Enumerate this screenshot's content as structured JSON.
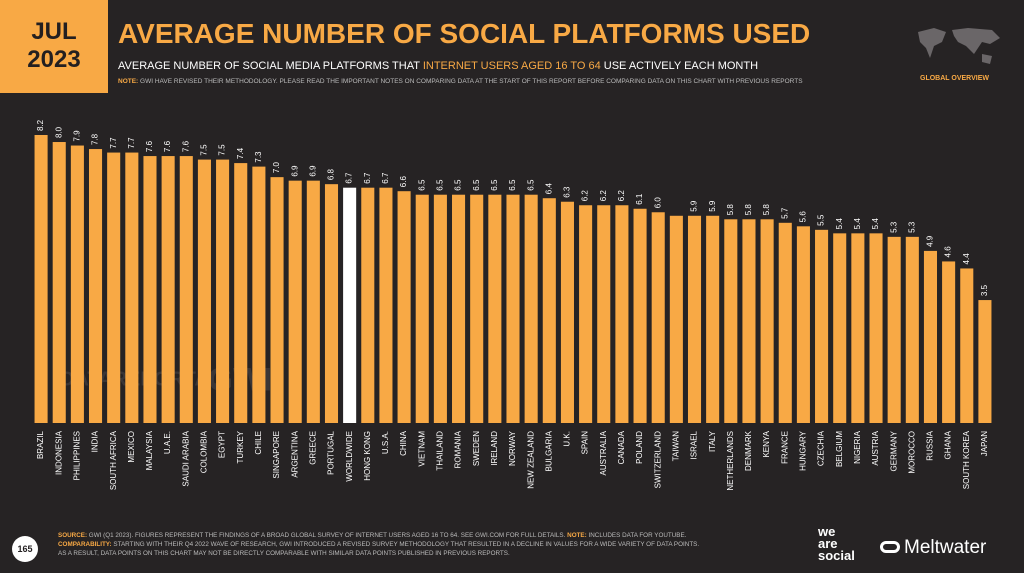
{
  "header": {
    "month": "JUL",
    "year": "2023",
    "title": "AVERAGE NUMBER OF SOCIAL PLATFORMS USED",
    "subtitle": [
      "AVERAGE NUMBER OF SOCIAL MEDIA PLATFORMS THAT",
      "INTERNET USERS AGED 16 TO 64",
      "USE ACTIVELY EACH MONTH"
    ],
    "note_label": "NOTE:",
    "note": "GWI HAVE REVISED THEIR METHODOLOGY. PLEASE READ THE IMPORTANT NOTES ON COMPARING DATA AT THE START OF THIS REPORT BEFORE COMPARING DATA ON THIS CHART WITH PREVIOUS REPORTS",
    "badge": "GLOBAL OVERVIEW"
  },
  "watermark": [
    "DATAREPORTAL",
    "GWI."
  ],
  "chart_data": {
    "type": "bar",
    "color": "#f8a945",
    "highlight": {
      "index": 17,
      "color": "#ffffff"
    },
    "categories": [
      "BRAZIL",
      "INDONESIA",
      "PHILIPPINES",
      "INDIA",
      "SOUTH AFRICA",
      "MEXICO",
      "MALAYSIA",
      "U.A.E.",
      "SAUDI ARABIA",
      "COLOMBIA",
      "EGYPT",
      "TURKEY",
      "CHILE",
      "SINGAPORE",
      "ARGENTINA",
      "GREECE",
      "PORTUGAL",
      "WORLDWIDE",
      "HONG KONG",
      "U.S.A.",
      "CHINA",
      "VIETNAM",
      "THAILAND",
      "ROMANIA",
      "SWEDEN",
      "IRELAND",
      "NORWAY",
      "NEW ZEALAND",
      "BULGARIA",
      "U.K.",
      "SPAIN",
      "AUSTRALIA",
      "CANADA",
      "POLAND",
      "SWITZERLAND",
      "TAIWAN",
      "ISRAEL",
      "ITALY",
      "NETHERLANDS",
      "DENMARK",
      "KENYA",
      "FRANCE",
      "HUNGARY",
      "CZECHIA",
      "BELGIUM",
      "NIGERIA",
      "AUSTRIA",
      "GERMANY",
      "MOROCCO",
      "RUSSIA",
      "GHANA",
      "SOUTH KOREA",
      "JAPAN"
    ],
    "values": [
      8.2,
      8.0,
      7.9,
      7.8,
      7.7,
      7.7,
      7.6,
      7.6,
      7.6,
      7.5,
      7.5,
      7.4,
      7.3,
      7.0,
      6.9,
      6.9,
      6.8,
      6.7,
      6.7,
      6.7,
      6.6,
      6.5,
      6.5,
      6.5,
      6.5,
      6.5,
      6.5,
      6.5,
      6.4,
      6.3,
      6.2,
      6.2,
      6.2,
      6.1,
      6.0,
      5.9,
      5.9,
      5.9,
      5.8,
      5.8,
      5.8,
      5.7,
      5.6,
      5.5,
      5.4,
      5.4,
      5.4,
      5.3,
      5.3,
      4.9,
      4.6,
      4.4,
      3.5
    ],
    "value_labels": [
      "8.2",
      "8.0",
      "7.9",
      "7.8",
      "7.7",
      "7.7",
      "7.6",
      "7.6",
      "7.6",
      "7.5",
      "7.5",
      "7.4",
      "7.3",
      "7.0",
      "6.9",
      "6.9",
      "6.8",
      "6.7",
      "6.7",
      "6.7",
      "6.6",
      "6.5",
      "6.5",
      "6.5",
      "6.5",
      "6.5",
      "6.5",
      "6.5",
      "6.4",
      "6.3",
      "6.2",
      "6.2",
      "6.2",
      "6.1",
      "6.0",
      null,
      "5.9",
      "5.9",
      "5.8",
      "5.8",
      "5.8",
      "5.7",
      "5.6",
      "5.5",
      "5.4",
      "5.4",
      "5.4",
      "5.3",
      "5.3",
      "4.9",
      "4.6",
      "4.4",
      "3.5"
    ]
  },
  "footer": {
    "page": "165",
    "source_label": "SOURCE:",
    "source": "GWI (Q1 2023). FIGURES REPRESENT THE FINDINGS OF A BROAD GLOBAL SURVEY OF INTERNET USERS AGED 16 TO 64. SEE GWI.COM FOR FULL DETAILS.",
    "note_label": "NOTE:",
    "note": "INCLUDES DATA FOR YOUTUBE.",
    "comparability_label": "COMPARABILITY:",
    "comparability": "STARTING WITH THEIR Q4 2022 WAVE OF RESEARCH, GWI INTRODUCED A REVISED SURVEY METHODOLOGY THAT RESULTED IN A DECLINE IN VALUES FOR A WIDE VARIETY OF DATA POINTS.",
    "comparability_2": "AS A RESULT, DATA POINTS ON THIS CHART MAY NOT BE DIRECTLY COMPARABLE WITH SIMILAR DATA POINTS PUBLISHED IN PREVIOUS REPORTS.",
    "brand_1": [
      "we",
      "are",
      "social"
    ],
    "brand_2": "Meltwater"
  }
}
